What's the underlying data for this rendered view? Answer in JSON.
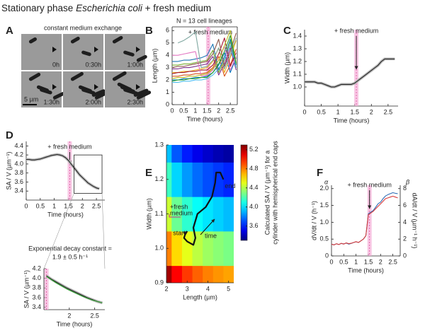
{
  "figure": {
    "title": {
      "prefix": "Stationary phase",
      "species": "Escherichia coli",
      "suffix": "+ fresh medium"
    },
    "panel_labels": [
      "A",
      "B",
      "C",
      "D",
      "E",
      "F"
    ]
  },
  "micrograph": {
    "caption": "constant medium exchange",
    "times": [
      "0h",
      "0:30h",
      "1:00h",
      "1:30h",
      "2:00h",
      "2:30h"
    ],
    "scale_bar": "5 µm"
  },
  "chart_data": [
    {
      "type": "line",
      "xlabel": "Time (hours)",
      "ylabel": "Length (µm)",
      "annotation": "N = 13 cell lineages",
      "event_x": 1.55,
      "event_label": "+ fresh medium",
      "xlim": [
        0,
        2.8
      ],
      "xticks": [
        0,
        0.5,
        1,
        1.5,
        2,
        2.5
      ],
      "ylim": [
        0,
        6.3
      ],
      "yticks": [
        0,
        1,
        2,
        3,
        4,
        5,
        6
      ],
      "x": [
        0,
        0.25,
        0.5,
        0.75,
        1,
        1.25,
        1.5,
        1.75,
        2,
        2.25,
        2.5,
        2.75
      ],
      "series": [
        {
          "color": "#0072bd",
          "values": [
            2.0,
            2.0,
            2.1,
            2.1,
            2.2,
            2.2,
            2.3,
            2.6,
            3.2,
            4.2,
            2.6,
            3.8
          ]
        },
        {
          "color": "#d95319",
          "values": [
            2.3,
            2.3,
            2.4,
            2.4,
            2.5,
            2.5,
            2.6,
            3.0,
            3.9,
            2.3,
            3.2,
            4.5
          ]
        },
        {
          "color": "#edb120",
          "values": [
            2.6,
            2.6,
            2.7,
            2.7,
            2.8,
            2.9,
            3.0,
            3.5,
            4.6,
            2.6,
            3.8,
            5.2
          ]
        },
        {
          "color": "#7e2f8e",
          "values": [
            2.9,
            2.9,
            3.0,
            3.0,
            3.1,
            3.2,
            3.3,
            3.9,
            2.4,
            3.3,
            4.6,
            2.8
          ]
        },
        {
          "color": "#77ac30",
          "values": [
            3.2,
            3.2,
            3.3,
            3.3,
            3.4,
            3.5,
            3.6,
            4.4,
            2.6,
            3.6,
            5.1,
            3.0
          ]
        },
        {
          "color": "#4dbeee",
          "values": [
            1.8,
            1.8,
            1.9,
            1.9,
            2.0,
            2.0,
            2.1,
            2.4,
            2.9,
            3.7,
            4.8,
            3.0
          ]
        },
        {
          "color": "#a2142f",
          "values": [
            2.5,
            2.6,
            2.6,
            2.7,
            2.7,
            2.8,
            2.8,
            3.2,
            4.1,
            5.4,
            3.1,
            4.2
          ]
        },
        {
          "color": "#1f77b4",
          "values": [
            3.5,
            3.5,
            3.6,
            3.6,
            3.7,
            3.8,
            4.0,
            4.9,
            2.8,
            3.9,
            5.3,
            3.2
          ]
        },
        {
          "color": "#7fa7a0",
          "values": [
            null,
            5.0,
            5.2,
            5.5,
            5.9,
            3.0,
            3.1,
            3.6,
            4.6,
            2.9,
            4.0,
            5.4
          ]
        },
        {
          "color": "#e377c2",
          "values": [
            4.0,
            4.0,
            4.1,
            4.2,
            4.3,
            2.3,
            2.4,
            2.8,
            3.6,
            4.7,
            2.8,
            3.9
          ]
        },
        {
          "color": "#bcbd22",
          "values": [
            2.1,
            2.2,
            2.2,
            2.3,
            2.3,
            2.4,
            2.5,
            2.9,
            3.6,
            4.8,
            6.0,
            3.4
          ]
        },
        {
          "color": "#8c564b",
          "values": [
            3.0,
            3.1,
            3.1,
            3.2,
            3.3,
            3.4,
            3.5,
            4.1,
            5.3,
            3.1,
            4.3,
            5.8
          ]
        },
        {
          "color": "#2ca02c",
          "values": [
            1.9,
            2.0,
            2.0,
            2.1,
            2.1,
            2.2,
            2.2,
            2.6,
            3.3,
            4.3,
            5.6,
            3.3
          ]
        }
      ]
    },
    {
      "type": "line",
      "xlabel": "Time (hours)",
      "ylabel": "Width (µm)",
      "event_x": 1.55,
      "event_label": "+ fresh medium",
      "xlim": [
        0,
        2.8
      ],
      "xticks": [
        0,
        0.5,
        1,
        1.5,
        2,
        2.5
      ],
      "ylim": [
        0.85,
        1.45
      ],
      "yticks": [
        {
          "value": 1,
          "label": "1.0"
        },
        1.1,
        1.2,
        1.3,
        1.4
      ],
      "x": [
        0,
        0.1,
        0.2,
        0.3,
        0.4,
        0.5,
        0.6,
        0.7,
        0.8,
        0.9,
        1.0,
        1.1,
        1.2,
        1.3,
        1.4,
        1.5,
        1.6,
        1.7,
        1.8,
        1.9,
        2.0,
        2.1,
        2.2,
        2.3,
        2.4,
        2.5,
        2.6,
        2.7
      ],
      "series": [
        {
          "color": "#222222",
          "values": [
            1.04,
            1.04,
            1.04,
            1.04,
            1.03,
            1.03,
            1.02,
            1.01,
            1.0,
            1.0,
            1.01,
            1.02,
            1.02,
            1.02,
            1.02,
            1.03,
            1.05,
            1.07,
            1.09,
            1.11,
            1.13,
            1.15,
            1.17,
            1.2,
            1.22,
            1.22,
            1.22,
            1.22
          ]
        }
      ]
    },
    {
      "type": "line",
      "xlabel": "Time (hours)",
      "ylabel": "SA / V (µm⁻¹)",
      "event_x": 1.55,
      "event_label": "+ fresh medium",
      "xlim": [
        0,
        2.8
      ],
      "xticks": [
        0,
        0.5,
        1,
        1.5,
        2,
        2.5
      ],
      "ylim": [
        3.2,
        4.5
      ],
      "yticks": [
        3.4,
        3.6,
        3.8,
        {
          "value": 4,
          "label": "4.0"
        },
        4.2,
        4.4
      ],
      "x": [
        0,
        0.1,
        0.2,
        0.3,
        0.4,
        0.5,
        0.6,
        0.7,
        0.8,
        0.9,
        1.0,
        1.1,
        1.2,
        1.3,
        1.4,
        1.5,
        1.6,
        1.7,
        1.8,
        1.9,
        2.0,
        2.1,
        2.2,
        2.3,
        2.4,
        2.5,
        2.6
      ],
      "series": [
        {
          "color": "#222222",
          "values": [
            4.1,
            4.1,
            4.09,
            4.09,
            4.1,
            4.11,
            4.13,
            4.15,
            4.17,
            4.19,
            4.2,
            4.21,
            4.2,
            4.18,
            4.14,
            4.08,
            4.0,
            3.92,
            3.84,
            3.76,
            3.7,
            3.64,
            3.58,
            3.54,
            3.5,
            3.47,
            3.45
          ]
        }
      ]
    },
    {
      "type": "line",
      "xlabel": "Time (hours)",
      "ylabel": "SA / V (µm⁻¹)",
      "title_lines": [
        "Exponential decay constant =",
        "1.9 ± 0.5 h⁻¹"
      ],
      "title_color": "#2ca02c",
      "event_x": 1.55,
      "xlim": [
        1.5,
        2.7
      ],
      "xticks": [
        2,
        2.5
      ],
      "ylim": [
        3.35,
        4.2
      ],
      "yticks": [
        3.4,
        3.6,
        3.8,
        {
          "value": 4,
          "label": "4.0"
        },
        4.2
      ],
      "x": [
        1.55,
        1.65,
        1.75,
        1.85,
        1.95,
        2.05,
        2.15,
        2.25,
        2.35,
        2.45,
        2.55,
        2.65
      ],
      "series": [
        {
          "color": "#222222",
          "values": [
            4.05,
            3.98,
            3.92,
            3.86,
            3.8,
            3.75,
            3.7,
            3.65,
            3.6,
            3.56,
            3.52,
            3.49
          ]
        },
        {
          "color": "#2ca02c",
          "values": [
            4.04,
            3.97,
            3.9,
            3.84,
            3.78,
            3.73,
            3.68,
            3.63,
            3.59,
            3.55,
            3.52,
            3.49
          ]
        }
      ]
    },
    {
      "type": "heatmap",
      "xlabel": "Length (µm)",
      "ylabel": "Width (µm)",
      "colorbar_label": [
        "Calculated SA / V (µm⁻¹) for a",
        "cylinder with hemispherical end caps"
      ],
      "xlim": [
        2,
        5.25
      ],
      "xticks": [
        2,
        3,
        4,
        5
      ],
      "ylim": [
        0.9,
        1.3
      ],
      "yticks": [
        0.9,
        {
          "value": 1,
          "label": "1.0"
        },
        1.1,
        1.2,
        1.3
      ],
      "clim": [
        3.3,
        5.3
      ],
      "cticks": [
        3.6,
        {
          "value": 4,
          "label": "4.0"
        },
        4.4,
        4.8,
        5.2
      ],
      "x": [
        2,
        2.5,
        3,
        3.5,
        4,
        4.5,
        5
      ],
      "y": [
        0.9,
        1.0,
        1.1,
        1.2,
        1.3
      ],
      "z": [
        [
          5.23,
          5.05,
          4.94,
          4.86,
          4.8,
          4.76,
          4.73
        ],
        [
          4.8,
          4.62,
          4.5,
          4.42,
          4.36,
          4.32,
          4.29
        ],
        [
          4.45,
          4.26,
          4.14,
          4.06,
          4.0,
          3.96,
          3.92
        ],
        [
          4.17,
          3.97,
          3.85,
          3.76,
          3.7,
          3.66,
          3.62
        ],
        [
          3.93,
          3.72,
          3.6,
          3.51,
          3.45,
          3.4,
          3.37
        ]
      ],
      "trajectory": {
        "x": [
          3.0,
          2.9,
          2.85,
          3.0,
          3.3,
          3.4,
          3.3,
          3.5,
          3.9,
          4.2,
          4.35,
          4.4,
          4.6,
          4.75
        ],
        "y": [
          1.05,
          1.04,
          1.03,
          1.02,
          1.01,
          1.03,
          1.06,
          1.1,
          1.12,
          1.15,
          1.19,
          1.22,
          1.22,
          1.2
        ]
      },
      "start_label": "start",
      "end_label": "end",
      "time_label": "time",
      "medium_label": [
        "+fresh",
        "medium"
      ]
    },
    {
      "type": "line",
      "xlabel": "Time (hours)",
      "ylabel": "dV/dt / V (h⁻¹)",
      "y2label": "dA/dt / V (µm⁻¹ h⁻¹)",
      "ysymbol": "α",
      "y2symbol": "β",
      "event_x": 1.55,
      "event_label": "+ fresh medium",
      "xlim": [
        0,
        2.8
      ],
      "xticks": [
        0,
        0.5,
        1,
        1.5,
        2,
        2.5
      ],
      "ylim": [
        0,
        2.1
      ],
      "yticks": [
        0,
        0.5,
        {
          "value": 1,
          "label": "1.0"
        },
        1.5,
        {
          "value": 2,
          "label": "2.0"
        }
      ],
      "y2lim": [
        0,
        8.4
      ],
      "y2ticks": [
        0,
        2,
        4,
        6,
        8
      ],
      "x": [
        0,
        0.1,
        0.2,
        0.3,
        0.4,
        0.5,
        0.6,
        0.7,
        0.8,
        0.9,
        1.0,
        1.1,
        1.2,
        1.3,
        1.4,
        1.5,
        1.6,
        1.7,
        1.8,
        1.9,
        2.0,
        2.1,
        2.2,
        2.3,
        2.4,
        2.5,
        2.6,
        2.7
      ],
      "series": [
        {
          "color": "#2f6db5",
          "values": [
            0.35,
            0.33,
            0.36,
            0.34,
            0.37,
            0.36,
            0.38,
            0.35,
            0.37,
            0.4,
            0.42,
            0.4,
            0.45,
            0.5,
            0.6,
            1.25,
            1.3,
            1.35,
            1.45,
            1.55,
            1.6,
            1.7,
            1.78,
            1.82,
            1.85,
            1.88,
            1.86,
            1.85
          ]
        },
        {
          "color": "#d93a3a",
          "axis": "y2",
          "values": [
            1.4,
            1.3,
            1.45,
            1.35,
            1.5,
            1.4,
            1.55,
            1.45,
            1.5,
            1.6,
            1.7,
            1.6,
            1.8,
            2.0,
            2.4,
            4.9,
            5.1,
            5.3,
            5.6,
            5.9,
            6.2,
            6.5,
            6.8,
            6.9,
            7.0,
            7.1,
            7.0,
            6.9
          ]
        }
      ]
    }
  ]
}
